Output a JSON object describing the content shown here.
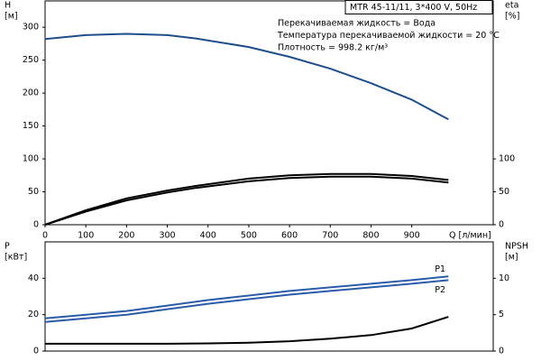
{
  "chart_data": [
    {
      "type": "line",
      "box_text": "MTR 45-11/11, 3*400 V, 50Hz",
      "annotations": [
        "Перекачиваемая жидкость = Вода",
        "Температура перекачиваемой жидкости = 20 °C",
        "Плотность = 998.2 кг/м³"
      ],
      "ylabel": [
        "H",
        "[м]"
      ],
      "y2label": [
        "eta",
        "[%]"
      ],
      "xlabel": "Q [л/мин]",
      "xlim": [
        0,
        1100
      ],
      "xticks": [
        0,
        100,
        200,
        300,
        400,
        500,
        600,
        700,
        800,
        900
      ],
      "ylim": [
        0,
        340
      ],
      "yticks": [
        0,
        50,
        100,
        150,
        200,
        250,
        300
      ],
      "y2lim": [
        0,
        340
      ],
      "y2ticks": [
        0,
        50,
        100
      ],
      "x": [
        0,
        100,
        200,
        300,
        370,
        500,
        600,
        700,
        800,
        900,
        990
      ],
      "series": [
        {
          "color": "#1f4e8c",
          "values": [
            282,
            288,
            290,
            288,
            283,
            270,
            255,
            237,
            215,
            190,
            160
          ]
        },
        {
          "color": "#000000",
          "axis": "y2",
          "values": [
            0,
            22,
            40,
            52,
            59,
            70,
            75,
            77,
            77,
            74,
            68
          ]
        },
        {
          "color": "#000000",
          "axis": "y2",
          "values": [
            0,
            20,
            37,
            49,
            56,
            66,
            71,
            73,
            73,
            70,
            64
          ]
        }
      ]
    },
    {
      "type": "line",
      "ylabel": [
        "P",
        "[кВт]"
      ],
      "y2label": [
        "NPSH",
        "[м]"
      ],
      "xlim": [
        0,
        1100
      ],
      "ylim": [
        0,
        60
      ],
      "yticks": [
        0,
        20,
        40
      ],
      "y2lim": [
        0,
        15
      ],
      "y2ticks": [
        0,
        5,
        10
      ],
      "x": [
        0,
        100,
        200,
        300,
        400,
        500,
        600,
        700,
        800,
        900,
        990
      ],
      "series": [
        {
          "name": "P1",
          "color": "#2a5caa",
          "values": [
            18,
            20,
            22,
            25,
            28,
            30.5,
            33,
            35,
            37,
            39,
            41
          ]
        },
        {
          "name": "P2",
          "color": "#2a5caa",
          "values": [
            16,
            18,
            20,
            23,
            26,
            28.5,
            31,
            33,
            35,
            37,
            39
          ]
        },
        {
          "color": "#000000",
          "axis": "y2",
          "values": [
            1.0,
            1.0,
            1.0,
            1.0,
            1.05,
            1.15,
            1.35,
            1.7,
            2.2,
            3.1,
            4.7
          ]
        }
      ]
    }
  ]
}
